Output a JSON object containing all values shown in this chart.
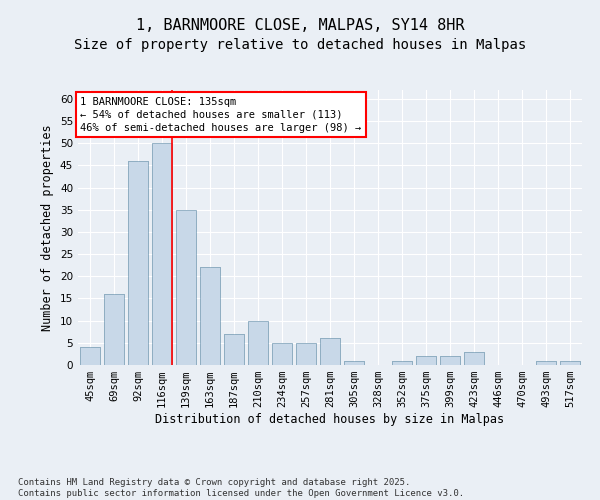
{
  "title_line1": "1, BARNMOORE CLOSE, MALPAS, SY14 8HR",
  "title_line2": "Size of property relative to detached houses in Malpas",
  "xlabel": "Distribution of detached houses by size in Malpas",
  "ylabel": "Number of detached properties",
  "categories": [
    "45sqm",
    "69sqm",
    "92sqm",
    "116sqm",
    "139sqm",
    "163sqm",
    "187sqm",
    "210sqm",
    "234sqm",
    "257sqm",
    "281sqm",
    "305sqm",
    "328sqm",
    "352sqm",
    "375sqm",
    "399sqm",
    "423sqm",
    "446sqm",
    "470sqm",
    "493sqm",
    "517sqm"
  ],
  "values": [
    4,
    16,
    46,
    50,
    35,
    22,
    7,
    10,
    5,
    5,
    6,
    1,
    0,
    1,
    2,
    2,
    3,
    0,
    0,
    1,
    1
  ],
  "bar_color": "#c8d8e8",
  "bar_edge_color": "#8aaabf",
  "red_line_x": 3,
  "annotation_text": "1 BARNMOORE CLOSE: 135sqm\n← 54% of detached houses are smaller (113)\n46% of semi-detached houses are larger (98) →",
  "annotation_box_color": "white",
  "annotation_box_edge_color": "red",
  "ylim": [
    0,
    62
  ],
  "yticks": [
    0,
    5,
    10,
    15,
    20,
    25,
    30,
    35,
    40,
    45,
    50,
    55,
    60
  ],
  "background_color": "#eaeff5",
  "grid_color": "#ffffff",
  "footer": "Contains HM Land Registry data © Crown copyright and database right 2025.\nContains public sector information licensed under the Open Government Licence v3.0.",
  "title_fontsize": 11,
  "subtitle_fontsize": 10,
  "axis_label_fontsize": 8.5,
  "tick_fontsize": 7.5,
  "annotation_fontsize": 7.5,
  "footer_fontsize": 6.5
}
